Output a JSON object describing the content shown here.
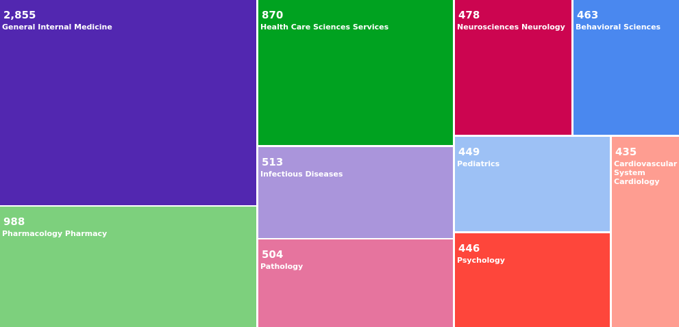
{
  "chart_data": {
    "type": "treemap",
    "title": "",
    "items": [
      {
        "label": "General Internal Medicine",
        "value_label": "2,855",
        "value": 2855,
        "color": "#5227b0"
      },
      {
        "label": "Pharmacology Pharmacy",
        "value_label": "988",
        "value": 988,
        "color": "#7dd07d"
      },
      {
        "label": "Health Care Sciences Services",
        "value_label": "870",
        "value": 870,
        "color": "#00a220"
      },
      {
        "label": "Infectious Diseases",
        "value_label": "513",
        "value": 513,
        "color": "#aa95db"
      },
      {
        "label": "Pathology",
        "value_label": "504",
        "value": 504,
        "color": "#e6749e"
      },
      {
        "label": "Neurosciences Neurology",
        "value_label": "478",
        "value": 478,
        "color": "#cc0550"
      },
      {
        "label": "Behavioral Sciences",
        "value_label": "463",
        "value": 463,
        "color": "#4a88ef"
      },
      {
        "label": "Pediatrics",
        "value_label": "449",
        "value": 449,
        "color": "#9dc1f5"
      },
      {
        "label": "Psychology",
        "value_label": "446",
        "value": 446,
        "color": "#fe463b"
      },
      {
        "label": "Cardiovascular System Cardiology",
        "value_label": "435",
        "value": 435,
        "color": "#fe9d91"
      }
    ]
  }
}
